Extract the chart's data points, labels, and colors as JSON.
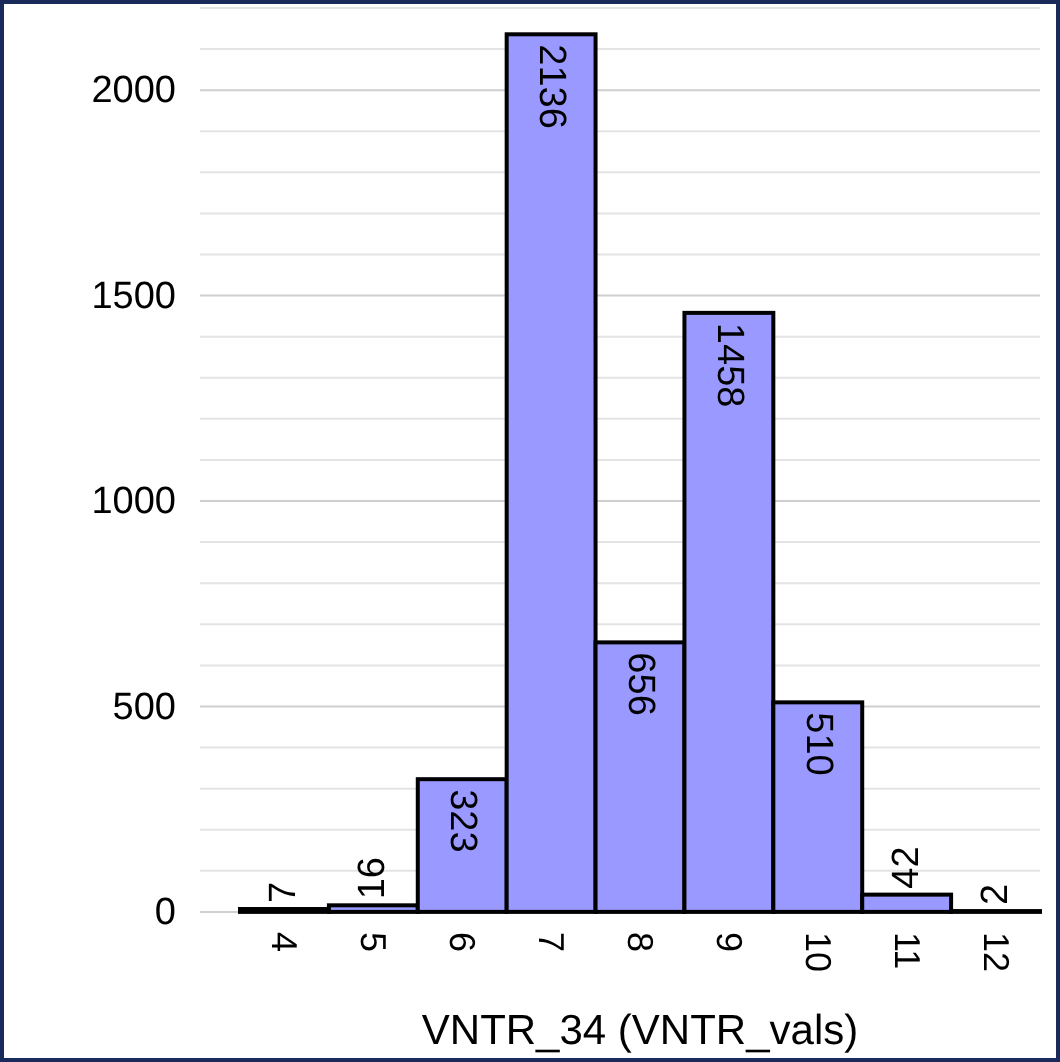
{
  "chart_data": {
    "type": "bar",
    "xlabel": "VNTR_34 (VNTR_vals)",
    "categories": [
      "4",
      "5",
      "6",
      "7",
      "8",
      "9",
      "10",
      "11",
      "12"
    ],
    "values": [
      7,
      16,
      323,
      2136,
      656,
      1458,
      510,
      42,
      2
    ],
    "color": "#9999ff",
    "data_labels": true,
    "grid": "y",
    "ylim": [
      -10,
      2200
    ],
    "yticks": [
      0,
      {
        "value": 100,
        "label": null
      },
      {
        "value": 200,
        "label": null
      },
      {
        "value": 300,
        "label": null
      },
      {
        "value": 400,
        "label": null
      },
      500,
      {
        "value": 600,
        "label": null
      },
      {
        "value": 700,
        "label": null
      },
      {
        "value": 800,
        "label": null
      },
      {
        "value": 900,
        "label": null
      },
      1000,
      {
        "value": 1100,
        "label": null
      },
      {
        "value": 1200,
        "label": null
      },
      {
        "value": 1300,
        "label": null
      },
      {
        "value": 1400,
        "label": null
      },
      1500,
      {
        "value": 1600,
        "label": null
      },
      {
        "value": 1700,
        "label": null
      },
      {
        "value": 1800,
        "label": null
      },
      {
        "value": 1900,
        "label": null
      },
      2000,
      {
        "value": 2100,
        "label": null
      },
      {
        "value": 2200,
        "label": null
      }
    ]
  }
}
